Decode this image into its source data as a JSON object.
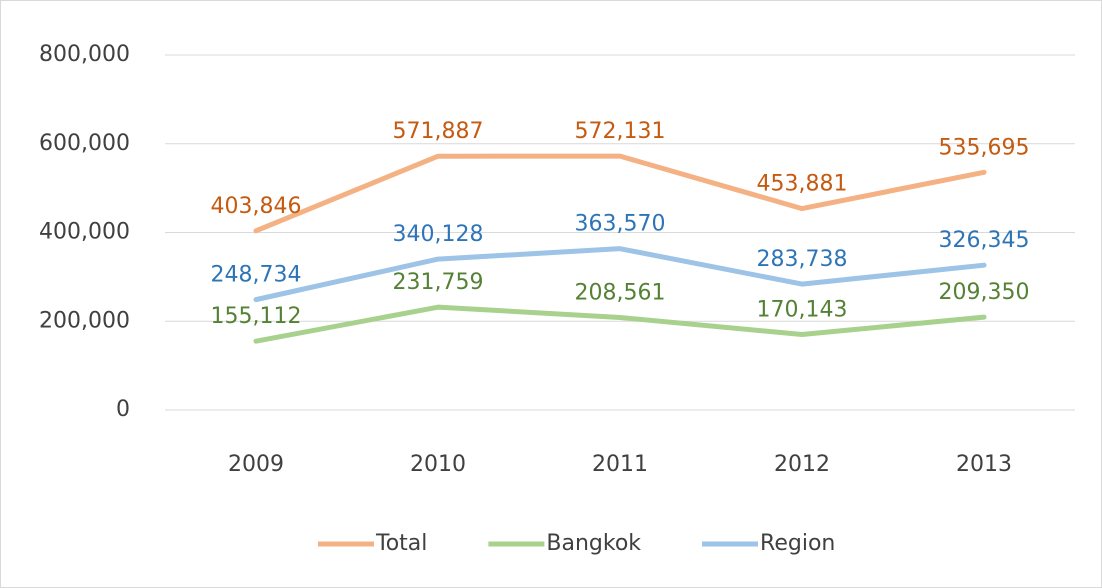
{
  "chart_data": {
    "type": "line",
    "categories": [
      "2009",
      "2010",
      "2011",
      "2012",
      "2013"
    ],
    "series": [
      {
        "name": "Total",
        "color": "#f4b183",
        "label_color": "#c55a11",
        "values": [
          403846,
          571887,
          572131,
          453881,
          535695
        ],
        "value_labels": [
          "403,846",
          "571,887",
          "572,131",
          "453,881",
          "535,695"
        ]
      },
      {
        "name": "Bangkok",
        "color": "#a9d18e",
        "label_color": "#548235",
        "values": [
          155112,
          231759,
          208561,
          170143,
          209350
        ],
        "value_labels": [
          "155,112",
          "231,759",
          "208,561",
          "170,143",
          "209,350"
        ]
      },
      {
        "name": "Region",
        "color": "#9dc3e6",
        "label_color": "#2e75b6",
        "values": [
          248734,
          340128,
          363570,
          283738,
          326345
        ],
        "value_labels": [
          "248,734",
          "340,128",
          "363,570",
          "283,738",
          "326,345"
        ]
      }
    ],
    "ylim": [
      0,
      800000
    ],
    "yticks": [
      {
        "value": 0,
        "label": "0"
      },
      {
        "value": 200000,
        "label": "200,000"
      },
      {
        "value": 400000,
        "label": "400,000"
      },
      {
        "value": 600000,
        "label": "600,000"
      },
      {
        "value": 800000,
        "label": "800,000"
      }
    ],
    "grid": true,
    "legend": "bottom"
  }
}
